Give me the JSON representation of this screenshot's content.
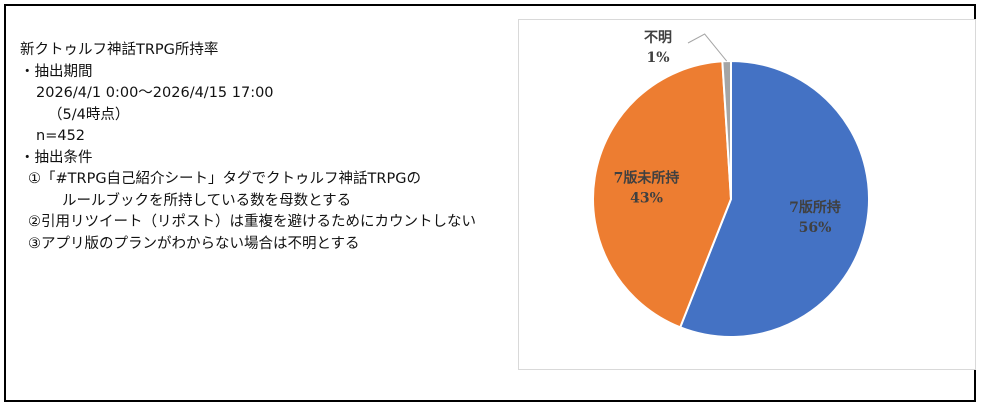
{
  "info": {
    "title": "新クトゥルフ神話TRPG所持率",
    "period_header": "・抽出期間",
    "period_range": "2026/4/1 0:00～2026/4/15 17:00",
    "period_note": "（5/4時点）",
    "n": "n=452",
    "conditions_header": "・抽出条件",
    "cond1_line1": "①「#TRPG自己紹介シート」タグでクトゥルフ神話TRPGの",
    "cond1_line2": "ルールブックを所持している数を母数とする",
    "cond2": "②引用リツイート（リポスト）は重複を避けるためにカウントしない",
    "cond3": "③アプリ版のプランがわからない場合は不明とする"
  },
  "chart_data": {
    "type": "pie",
    "slices": [
      {
        "label": "7版所持",
        "percent_label": "56%",
        "value": 56,
        "color": "#4472C4"
      },
      {
        "label": "7版未所持",
        "percent_label": "43%",
        "value": 43,
        "color": "#ED7D31"
      },
      {
        "label": "不明",
        "percent_label": "1%",
        "value": 1,
        "color": "#A5A5A5"
      }
    ],
    "start": "12 o'clock, clockwise",
    "legend": "none"
  }
}
